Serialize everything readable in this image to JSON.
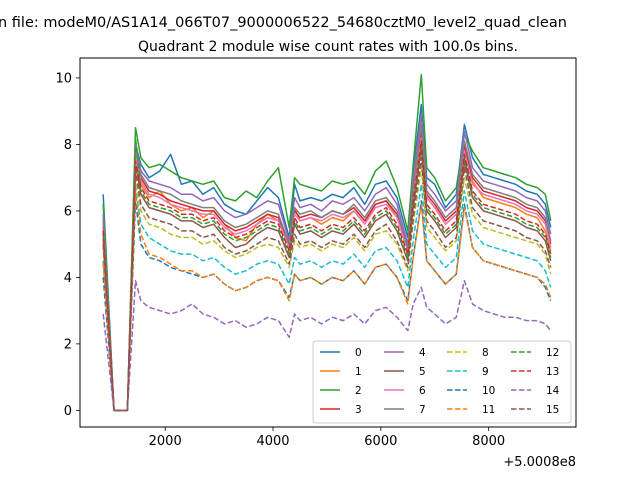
{
  "figure": {
    "suptitle": "n file: modeM0/AS1A14_066T07_9000006522_54680cztM0_level2_quad_clean",
    "offset_label": "+5.0008e8"
  },
  "chart_data": {
    "type": "line",
    "title": "Quadrant 2 module wise count rates with 100.0s bins.",
    "xlabel": "",
    "ylabel": "",
    "x_offset": 500080000,
    "xlim": [
      420,
      9620
    ],
    "ylim": [
      -0.5,
      10.6
    ],
    "xticks": [
      2000,
      4000,
      6000,
      8000
    ],
    "xtick_labels": [
      "2000",
      "4000",
      "6000",
      "8000"
    ],
    "yticks": [
      0,
      2,
      4,
      6,
      8,
      10
    ],
    "ytick_labels": [
      "0",
      "2",
      "4",
      "6",
      "8",
      "10"
    ],
    "grid": false,
    "legend_position": "lower-right",
    "legend_columns": 4,
    "x": [
      850,
      1050,
      1300,
      1450,
      1550,
      1700,
      1900,
      2100,
      2300,
      2500,
      2700,
      2900,
      3100,
      3300,
      3500,
      3700,
      3900,
      4100,
      4300,
      4400,
      4500,
      4700,
      4900,
      5100,
      5300,
      5500,
      5700,
      5900,
      6100,
      6300,
      6500,
      6600,
      6750,
      6850,
      7000,
      7200,
      7400,
      7550,
      7700,
      7900,
      8100,
      8300,
      8500,
      8700,
      8900,
      9050,
      9150
    ],
    "series": [
      {
        "name": "0",
        "color": "#1f77b4",
        "dash": "solid",
        "values": [
          6.5,
          0,
          0,
          8.0,
          7.4,
          7.0,
          7.2,
          7.7,
          6.8,
          6.9,
          6.5,
          6.7,
          6.2,
          6.0,
          5.9,
          6.3,
          6.7,
          6.4,
          5.2,
          6.8,
          6.3,
          6.4,
          6.3,
          6.5,
          6.4,
          6.7,
          6.2,
          6.8,
          6.9,
          6.4,
          5.2,
          7.2,
          9.2,
          7.0,
          6.8,
          6.1,
          6.5,
          8.6,
          7.6,
          7.1,
          7.0,
          6.9,
          6.8,
          6.6,
          6.5,
          6.2,
          5.5
        ]
      },
      {
        "name": "1",
        "color": "#ff7f0e",
        "dash": "solid",
        "values": [
          5.8,
          0,
          0,
          7.8,
          6.8,
          6.4,
          6.6,
          6.2,
          6.0,
          6.1,
          5.8,
          6.0,
          5.6,
          5.2,
          5.1,
          5.6,
          5.9,
          5.7,
          4.9,
          6.1,
          5.7,
          5.8,
          5.6,
          5.8,
          5.7,
          6.0,
          5.6,
          6.2,
          6.3,
          5.8,
          4.8,
          6.6,
          8.5,
          6.4,
          6.1,
          5.6,
          5.9,
          7.9,
          6.9,
          6.4,
          6.3,
          6.2,
          6.1,
          5.9,
          5.8,
          5.4,
          4.8
        ]
      },
      {
        "name": "2",
        "color": "#2ca02c",
        "dash": "solid",
        "values": [
          6.2,
          0,
          0,
          8.5,
          7.6,
          7.3,
          7.4,
          7.2,
          7.0,
          6.9,
          6.8,
          6.9,
          6.4,
          6.3,
          6.6,
          6.4,
          6.9,
          7.3,
          5.5,
          7.0,
          6.8,
          6.7,
          6.6,
          6.9,
          6.8,
          6.9,
          6.5,
          7.2,
          7.5,
          6.7,
          5.4,
          7.4,
          10.1,
          7.3,
          7.0,
          6.3,
          6.7,
          8.3,
          7.8,
          7.3,
          7.2,
          7.1,
          7.0,
          6.8,
          6.7,
          6.5,
          5.7
        ]
      },
      {
        "name": "3",
        "color": "#d62728",
        "dash": "solid",
        "values": [
          5.5,
          0,
          0,
          7.6,
          7.0,
          6.6,
          6.5,
          6.3,
          6.2,
          6.1,
          6.0,
          6.0,
          5.6,
          5.4,
          5.5,
          5.7,
          5.9,
          5.8,
          5.0,
          6.0,
          5.8,
          5.9,
          5.8,
          6.0,
          5.9,
          6.1,
          5.7,
          6.2,
          6.3,
          5.9,
          4.9,
          6.6,
          8.4,
          6.5,
          6.2,
          5.7,
          6.0,
          8.0,
          7.0,
          6.6,
          6.5,
          6.4,
          6.3,
          6.1,
          6.0,
          5.7,
          5.0
        ]
      },
      {
        "name": "4",
        "color": "#9467bd",
        "dash": "solid",
        "values": [
          5.9,
          0,
          0,
          8.1,
          7.2,
          6.9,
          6.8,
          6.7,
          6.5,
          6.5,
          6.3,
          6.4,
          6.0,
          5.8,
          5.9,
          6.1,
          6.3,
          6.2,
          5.1,
          6.4,
          6.1,
          6.2,
          6.0,
          6.3,
          6.2,
          6.4,
          6.0,
          6.5,
          6.7,
          6.2,
          5.0,
          7.0,
          8.9,
          6.8,
          6.5,
          6.0,
          6.3,
          8.4,
          7.3,
          6.9,
          6.8,
          6.7,
          6.6,
          6.4,
          6.3,
          6.0,
          5.3
        ]
      },
      {
        "name": "5",
        "color": "#8c564b",
        "dash": "solid",
        "values": [
          5.2,
          0,
          0,
          7.4,
          6.5,
          6.1,
          6.0,
          5.9,
          5.7,
          5.7,
          5.5,
          5.6,
          5.2,
          4.9,
          5.0,
          5.3,
          5.5,
          5.4,
          4.6,
          5.6,
          5.3,
          5.4,
          5.2,
          5.4,
          5.3,
          5.6,
          5.2,
          5.7,
          5.9,
          5.4,
          4.5,
          6.1,
          7.9,
          6.0,
          5.7,
          5.2,
          5.5,
          7.5,
          6.4,
          6.0,
          5.9,
          5.8,
          5.7,
          5.5,
          5.4,
          5.1,
          4.5
        ]
      },
      {
        "name": "6",
        "color": "#e377c2",
        "dash": "solid",
        "values": [
          5.6,
          0,
          0,
          7.7,
          6.9,
          6.5,
          6.4,
          6.2,
          6.1,
          6.0,
          5.9,
          5.9,
          5.5,
          5.3,
          5.4,
          5.6,
          5.8,
          5.7,
          4.9,
          5.9,
          5.7,
          5.8,
          5.7,
          5.9,
          5.8,
          6.0,
          5.6,
          6.1,
          6.2,
          5.8,
          4.8,
          6.5,
          8.2,
          6.4,
          6.1,
          5.6,
          5.9,
          7.8,
          6.8,
          6.5,
          6.4,
          6.3,
          6.2,
          6.0,
          5.9,
          5.6,
          4.9
        ]
      },
      {
        "name": "7",
        "color": "#7f7f7f",
        "dash": "solid",
        "values": [
          5.7,
          0,
          0,
          7.9,
          7.1,
          6.7,
          6.6,
          6.5,
          6.3,
          6.2,
          6.1,
          6.1,
          5.7,
          5.5,
          5.6,
          5.8,
          6.0,
          5.9,
          5.0,
          6.1,
          5.9,
          6.0,
          5.8,
          6.0,
          5.9,
          6.2,
          5.8,
          6.3,
          6.4,
          6.0,
          4.9,
          6.7,
          8.6,
          6.6,
          6.3,
          5.8,
          6.1,
          8.1,
          7.1,
          6.7,
          6.6,
          6.5,
          6.4,
          6.2,
          6.1,
          5.8,
          5.1
        ]
      },
      {
        "name": "8",
        "color": "#bcbd22",
        "dash": "dashed",
        "values": [
          4.9,
          0,
          0,
          7.0,
          6.0,
          5.6,
          5.5,
          5.3,
          5.2,
          5.2,
          5.0,
          5.1,
          4.8,
          4.6,
          4.7,
          4.9,
          5.0,
          4.9,
          4.3,
          5.1,
          4.9,
          5.0,
          4.8,
          5.0,
          4.9,
          5.2,
          4.8,
          5.3,
          5.4,
          5.0,
          4.2,
          5.6,
          7.3,
          5.5,
          5.2,
          4.8,
          5.1,
          7.0,
          5.9,
          5.5,
          5.4,
          5.3,
          5.2,
          5.1,
          5.0,
          4.7,
          4.1
        ]
      },
      {
        "name": "9",
        "color": "#17becf",
        "dash": "dashed",
        "values": [
          4.5,
          0,
          0,
          6.7,
          5.6,
          5.2,
          5.0,
          4.8,
          4.7,
          4.7,
          4.5,
          4.6,
          4.3,
          4.1,
          4.2,
          4.4,
          4.5,
          4.4,
          3.8,
          4.6,
          4.4,
          4.5,
          4.3,
          4.5,
          4.4,
          4.7,
          4.3,
          4.8,
          4.9,
          4.5,
          3.7,
          5.1,
          6.8,
          5.0,
          4.7,
          4.3,
          4.6,
          6.6,
          5.4,
          5.0,
          4.9,
          4.8,
          4.7,
          4.6,
          4.5,
          4.2,
          3.7
        ]
      },
      {
        "name": "10",
        "color": "#1f77b4",
        "dash": "dashed",
        "values": [
          4.0,
          0,
          0,
          6.3,
          5.0,
          4.6,
          4.5,
          4.3,
          4.2,
          4.1,
          4.0,
          4.1,
          3.8,
          3.6,
          3.7,
          3.9,
          4.0,
          3.9,
          3.4,
          4.1,
          3.9,
          4.0,
          3.8,
          4.0,
          3.9,
          4.2,
          3.8,
          4.3,
          4.4,
          4.0,
          3.3,
          4.6,
          6.3,
          4.5,
          4.2,
          3.8,
          4.1,
          6.2,
          4.9,
          4.5,
          4.4,
          4.3,
          4.2,
          4.1,
          4.0,
          3.7,
          3.3
        ]
      },
      {
        "name": "11",
        "color": "#ff7f0e",
        "dash": "dashed",
        "values": [
          4.4,
          0,
          0,
          6.6,
          5.3,
          4.7,
          4.6,
          4.4,
          4.2,
          4.2,
          4.0,
          4.1,
          3.8,
          3.6,
          3.7,
          3.9,
          4.0,
          3.9,
          3.3,
          4.1,
          3.9,
          4.0,
          3.8,
          4.0,
          3.9,
          4.2,
          3.8,
          4.3,
          4.4,
          4.0,
          3.2,
          4.6,
          6.2,
          4.5,
          4.2,
          3.8,
          4.1,
          6.1,
          4.9,
          4.5,
          4.4,
          4.3,
          4.2,
          4.1,
          4.0,
          3.8,
          3.4
        ]
      },
      {
        "name": "12",
        "color": "#2ca02c",
        "dash": "dashed",
        "values": [
          5.3,
          0,
          0,
          8.2,
          6.6,
          6.2,
          6.1,
          6.0,
          5.8,
          5.8,
          5.6,
          5.7,
          5.3,
          5.1,
          5.2,
          5.4,
          5.6,
          5.5,
          4.7,
          5.7,
          5.4,
          5.5,
          5.3,
          5.5,
          5.4,
          5.7,
          5.3,
          5.8,
          6.0,
          5.5,
          4.6,
          6.2,
          8.0,
          6.1,
          5.8,
          5.3,
          5.6,
          7.6,
          6.5,
          6.1,
          6.0,
          5.9,
          5.8,
          5.6,
          5.5,
          5.2,
          4.6
        ]
      },
      {
        "name": "13",
        "color": "#d62728",
        "dash": "dashed",
        "values": [
          5.4,
          0,
          0,
          7.5,
          6.7,
          6.3,
          6.2,
          6.1,
          5.9,
          5.9,
          5.7,
          5.8,
          5.4,
          5.2,
          5.3,
          5.5,
          5.7,
          5.6,
          4.8,
          5.8,
          5.5,
          5.6,
          5.4,
          5.6,
          5.5,
          5.8,
          5.4,
          5.9,
          6.1,
          5.6,
          4.7,
          6.3,
          8.1,
          6.2,
          5.9,
          5.4,
          5.7,
          7.7,
          6.6,
          6.2,
          6.1,
          6.0,
          5.9,
          5.7,
          5.6,
          5.3,
          4.7
        ]
      },
      {
        "name": "14",
        "color": "#9467bd",
        "dash": "dashed",
        "values": [
          2.9,
          0,
          0,
          3.9,
          3.3,
          3.1,
          3.0,
          2.9,
          3.0,
          3.2,
          2.9,
          2.8,
          2.6,
          2.7,
          2.5,
          2.6,
          2.8,
          2.7,
          2.2,
          2.9,
          2.7,
          2.8,
          2.6,
          2.8,
          2.7,
          2.9,
          2.6,
          3.0,
          3.1,
          2.8,
          2.4,
          3.2,
          3.7,
          3.1,
          2.9,
          2.6,
          2.8,
          3.9,
          3.2,
          3.0,
          2.9,
          2.8,
          2.8,
          2.7,
          2.7,
          2.6,
          2.4
        ]
      },
      {
        "name": "15",
        "color": "#8c564b",
        "dash": "dashed",
        "values": [
          5.0,
          0,
          0,
          7.2,
          6.2,
          5.8,
          5.7,
          5.6,
          5.4,
          5.4,
          5.2,
          5.3,
          4.9,
          4.7,
          4.8,
          5.0,
          5.2,
          5.1,
          4.4,
          5.3,
          5.0,
          5.1,
          4.9,
          5.1,
          5.0,
          5.3,
          4.9,
          5.4,
          5.6,
          5.1,
          4.3,
          5.8,
          7.6,
          5.7,
          5.4,
          4.9,
          5.2,
          7.3,
          6.1,
          5.7,
          5.6,
          5.5,
          5.4,
          5.2,
          5.1,
          4.8,
          4.3
        ]
      }
    ]
  }
}
